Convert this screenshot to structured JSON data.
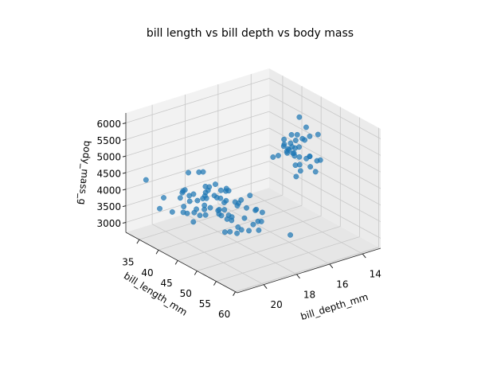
{
  "chart_data": {
    "type": "scatter3d",
    "title": "bill length vs bill depth vs body mass",
    "x_label": "bill_length_mm",
    "y_label": "bill_depth_mm",
    "z_label": "body_mass_g",
    "color": "#1f77b4",
    "grid": true,
    "xlim": [
      31.5,
      60.5
    ],
    "ylim": [
      12.9,
      21.6
    ],
    "zlim": [
      2700,
      6300
    ],
    "xticks": [
      35,
      40,
      45,
      50,
      55,
      60
    ],
    "yticks": [
      14,
      16,
      18,
      20
    ],
    "zticks": [
      3000,
      3500,
      4000,
      4500,
      5000,
      5500,
      6000
    ],
    "x": [
      39.1,
      39.5,
      40.3,
      36.7,
      39.3,
      38.9,
      39.2,
      34.1,
      42,
      37.8,
      37.8,
      41.1,
      38.6,
      34.6,
      36.6,
      38.7,
      42.5,
      34.4,
      46,
      37.8,
      37.7,
      35.9,
      38.2,
      38.8,
      35.3,
      40.6,
      40.5,
      37.9,
      40.5,
      39.5,
      37.2,
      39.5,
      40.9,
      36.4,
      39.2,
      38.8,
      42.2,
      37.6,
      39.8,
      36.5,
      40.8,
      36,
      44.1,
      37,
      39.6,
      41.1,
      37.5,
      32.1,
      40.2,
      41.5,
      46.5,
      50,
      51.3,
      45.4,
      52.7,
      45.2,
      46.1,
      51.3,
      46,
      51.3,
      46.6,
      51.7,
      47,
      52,
      45.9,
      50.5,
      58,
      49.2,
      42.4,
      48.5,
      43.2,
      55.8,
      50.9,
      46.1,
      50,
      48.7,
      50,
      47.6,
      46.5,
      45.4,
      46.7,
      43.3,
      46.8,
      40.9,
      49,
      45.5,
      48.4,
      45.8,
      49.3,
      42,
      49.2,
      46.2,
      48.7,
      50.2,
      45.1,
      46.5,
      46.3,
      42.9,
      46.1,
      47.8,
      48.2,
      50.5,
      59.6,
      55.9,
      44.5,
      49.5,
      43.5,
      50.4,
      45.2,
      49.9
    ],
    "y": [
      18.7,
      17.4,
      18,
      19.3,
      20.6,
      17.8,
      19.6,
      18.1,
      20.2,
      17.1,
      17.3,
      17.6,
      21.2,
      21.1,
      17.8,
      19,
      20.7,
      18.4,
      21.5,
      18.3,
      18.7,
      19.2,
      18.1,
      17.2,
      18.9,
      18.6,
      17.9,
      18.6,
      18.9,
      16.7,
      18.1,
      17.8,
      18.9,
      17,
      21.1,
      20,
      18.5,
      19.3,
      19.1,
      18,
      18.4,
      18.5,
      19.7,
      16.9,
      18.8,
      19,
      18.9,
      15.5,
      17,
      18.5,
      17.9,
      19.5,
      19.2,
      18.7,
      19.8,
      17.8,
      18.2,
      18.2,
      18.9,
      19.9,
      17.8,
      20.3,
      17.3,
      18.1,
      17.1,
      19.6,
      17.8,
      18.2,
      17.3,
      17.5,
      16.6,
      19.8,
      17.9,
      13.2,
      16.3,
      14.1,
      15.2,
      14.5,
      13.5,
      14.6,
      15.3,
      13.4,
      15.4,
      13.7,
      16.1,
      13.7,
      14.6,
      14.6,
      15.7,
      13.5,
      15.2,
      14.5,
      15.1,
      14.3,
      14.5,
      14.5,
      15.8,
      13.1,
      15.1,
      15,
      14.3,
      15.9,
      17,
      17,
      15.7,
      16.2,
      14.2,
      15.7,
      14.8,
      16.1
    ],
    "z": [
      3750,
      3800,
      3250,
      3450,
      3650,
      3625,
      4675,
      3475,
      4250,
      3300,
      3700,
      3200,
      3800,
      4400,
      3700,
      3450,
      4500,
      3325,
      4200,
      3400,
      3600,
      3800,
      3950,
      3800,
      3800,
      3550,
      3200,
      3150,
      3950,
      3250,
      3900,
      3300,
      3900,
      3325,
      4150,
      3950,
      3550,
      3300,
      4650,
      3150,
      3900,
      3100,
      4400,
      3000,
      4600,
      3425,
      2975,
      3050,
      3450,
      4300,
      3500,
      3900,
      3650,
      3525,
      3725,
      3950,
      3250,
      3750,
      4150,
      3700,
      3800,
      3775,
      3700,
      4050,
      3575,
      4050,
      3700,
      4400,
      3600,
      3200,
      2900,
      4000,
      3675,
      4500,
      5700,
      4450,
      5700,
      5400,
      4550,
      4800,
      5200,
      4400,
      5150,
      4650,
      5550,
      4650,
      5850,
      4200,
      5850,
      4150,
      6300,
      4800,
      5350,
      5700,
      5000,
      4400,
      5050,
      5000,
      5100,
      5650,
      4600,
      5400,
      6050,
      5550,
      4875,
      5800,
      4700,
      5750,
      5200,
      5400
    ]
  }
}
